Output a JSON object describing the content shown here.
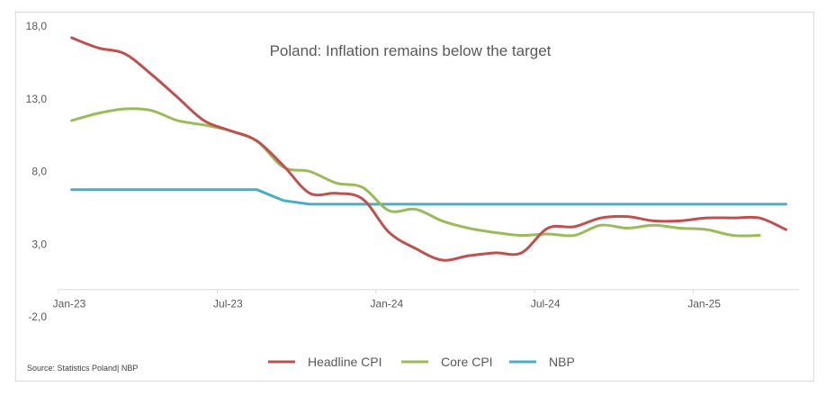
{
  "chart_data": {
    "type": "line",
    "title": "Poland: Inflation remains below the target",
    "xlabel": "",
    "ylabel": "",
    "source": "Source: Statistics Poland| NBP",
    "ylim": [
      -2,
      18
    ],
    "yticks": [
      -2,
      3,
      8,
      13,
      18
    ],
    "ytick_labels": [
      "-2,0",
      "3,0",
      "8,0",
      "13,0",
      "18,0"
    ],
    "x_months": [
      "Jan-23",
      "Feb-23",
      "Mar-23",
      "Apr-23",
      "May-23",
      "Jun-23",
      "Jul-23",
      "Aug-23",
      "Sep-23",
      "Oct-23",
      "Nov-23",
      "Dec-23",
      "Jan-24",
      "Feb-24",
      "Mar-24",
      "Apr-24",
      "May-24",
      "Jun-24",
      "Jul-24",
      "Aug-24",
      "Sep-24",
      "Oct-24",
      "Nov-24",
      "Dec-24",
      "Jan-25",
      "Feb-25",
      "Mar-25",
      "Apr-25"
    ],
    "xtick_labels": [
      {
        "label": "Jan-23",
        "index": 0
      },
      {
        "label": "Jul-23",
        "index": 6
      },
      {
        "label": "Jan-24",
        "index": 12
      },
      {
        "label": "Jul-24",
        "index": 18
      },
      {
        "label": "Jan-25",
        "index": 24
      }
    ],
    "grid": false,
    "legend_position": "bottom",
    "series": [
      {
        "name": "Headline CPI",
        "color": "#c0504d",
        "values": [
          17.2,
          16.5,
          16.1,
          14.7,
          13.1,
          11.5,
          10.8,
          10.1,
          8.4,
          6.5,
          6.5,
          6.1,
          3.8,
          2.7,
          1.9,
          2.2,
          2.4,
          2.4,
          4.1,
          4.2,
          4.8,
          4.9,
          4.6,
          4.6,
          4.8,
          4.8,
          4.8,
          4.0
        ]
      },
      {
        "name": "Core CPI",
        "color": "#9bbb59",
        "values": [
          11.5,
          12.0,
          12.3,
          12.2,
          11.5,
          11.2,
          10.8,
          10.1,
          8.3,
          8.0,
          7.2,
          6.9,
          5.3,
          5.4,
          4.6,
          4.1,
          3.8,
          3.6,
          3.7,
          3.6,
          4.3,
          4.1,
          4.3,
          4.1,
          4.0,
          3.6,
          3.6,
          null
        ]
      },
      {
        "name": "NBP",
        "color": "#4bacc6",
        "values": [
          6.75,
          6.75,
          6.75,
          6.75,
          6.75,
          6.75,
          6.75,
          6.75,
          6.0,
          5.75,
          5.75,
          5.75,
          5.75,
          5.75,
          5.75,
          5.75,
          5.75,
          5.75,
          5.75,
          5.75,
          5.75,
          5.75,
          5.75,
          5.75,
          5.75,
          5.75,
          5.75,
          5.75
        ]
      }
    ]
  }
}
